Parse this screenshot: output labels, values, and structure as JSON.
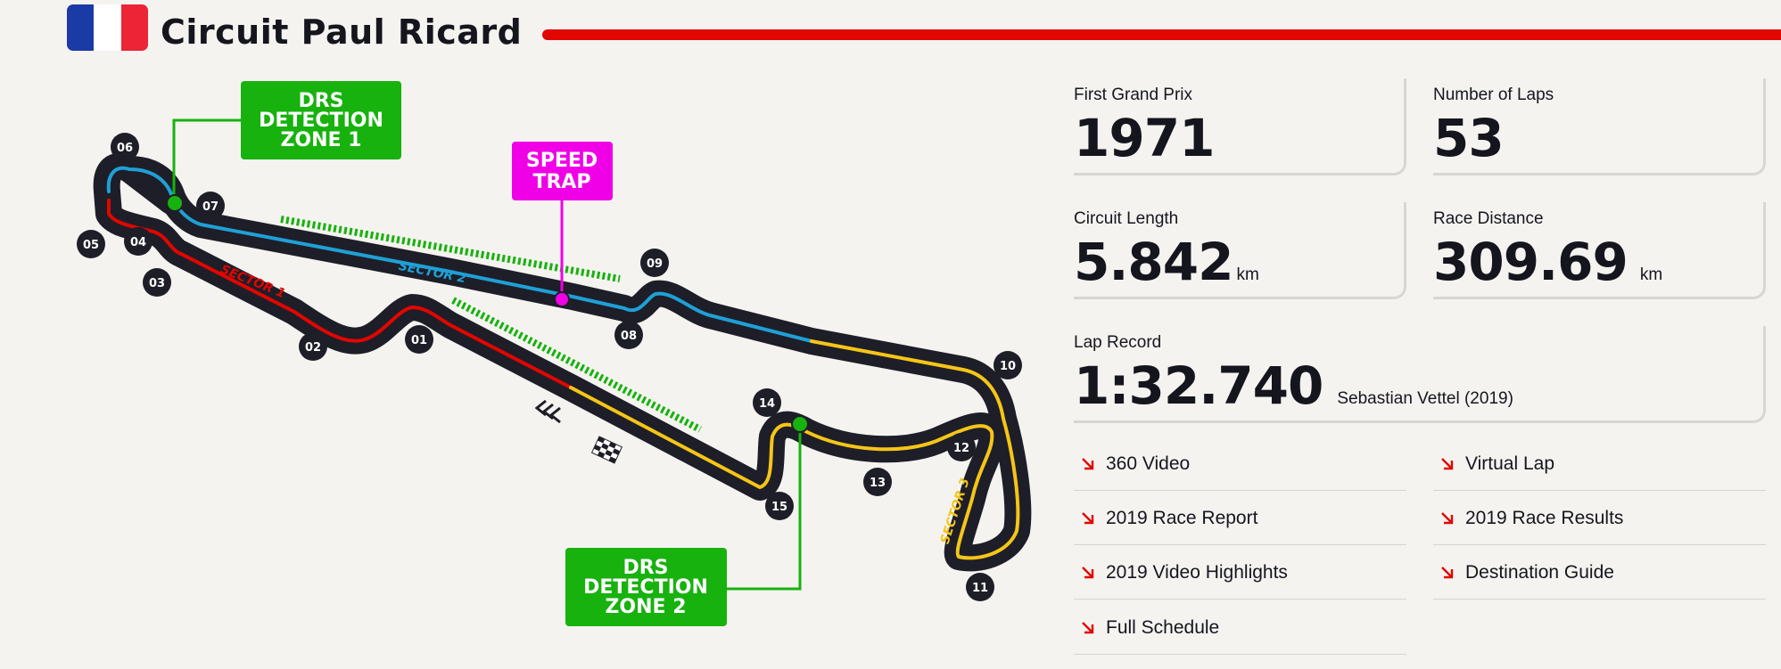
{
  "header": {
    "title": "Circuit Paul Ricard",
    "flag_colors": [
      "#1a3aa6",
      "#ffffff",
      "#ec2436"
    ],
    "accent": "#e10600"
  },
  "map": {
    "drs_zone_1": [
      "DRS",
      "DETECTION",
      "ZONE 1"
    ],
    "drs_zone_2": [
      "DRS",
      "DETECTION",
      "ZONE 2"
    ],
    "speed_trap": [
      "SPEED",
      "TRAP"
    ],
    "sector_1": "SECTOR 1",
    "sector_2": "SECTOR 2",
    "sector_3": "SECTOR 3",
    "turns": [
      "01",
      "02",
      "03",
      "04",
      "05",
      "06",
      "07",
      "08",
      "09",
      "10",
      "11",
      "12",
      "13",
      "14",
      "15"
    ],
    "colors": {
      "drs_green": "#17b20e",
      "speed_trap": "#f000e6",
      "sector_1": "#e10600",
      "sector_2": "#1fa0d6",
      "sector_3": "#f5c518",
      "track": "#1e1e28"
    }
  },
  "stats": {
    "first_gp": {
      "label": "First Grand Prix",
      "value": "1971"
    },
    "laps": {
      "label": "Number of Laps",
      "value": "53"
    },
    "length": {
      "label": "Circuit Length",
      "value": "5.842",
      "unit": "km"
    },
    "distance": {
      "label": "Race Distance",
      "value": "309.69",
      "unit": "km"
    },
    "lap_record": {
      "label": "Lap Record",
      "value": "1:32.740",
      "holder": "Sebastian Vettel (2019)"
    }
  },
  "links": {
    "video_360": "360 Video",
    "virtual_lap": "Virtual Lap",
    "race_report": "2019 Race Report",
    "race_results": "2019 Race Results",
    "video_highlights": "2019 Video Highlights",
    "destination_guide": "Destination Guide",
    "full_schedule": "Full Schedule"
  }
}
